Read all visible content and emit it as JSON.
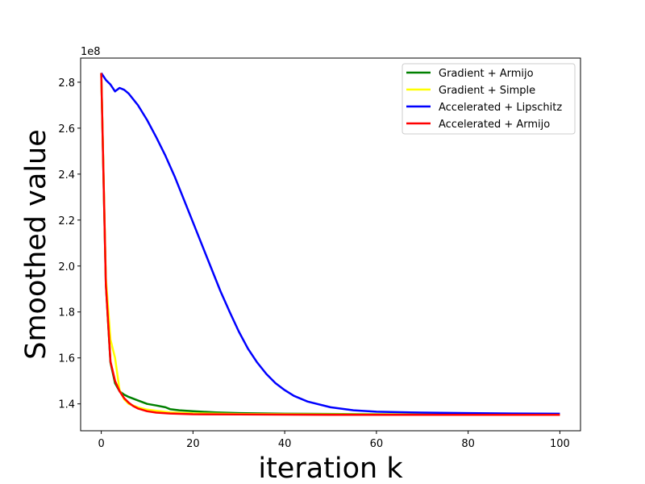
{
  "chart_data": {
    "type": "line",
    "xlabel": "iteration k",
    "ylabel": "Smoothed value",
    "offset_text": "1e8",
    "xlim": [
      -4.5,
      104.5
    ],
    "ylim": [
      128300000.0,
      290500000.0
    ],
    "grid": false,
    "legend_position": "top-right",
    "x_ticks": [
      0,
      20,
      40,
      60,
      80,
      100
    ],
    "x_tick_labels": [
      "0",
      "20",
      "40",
      "60",
      "80",
      "100"
    ],
    "y_ticks": [
      140000000.0,
      160000000.0,
      180000000.0,
      200000000.0,
      220000000.0,
      240000000.0,
      260000000.0,
      280000000.0
    ],
    "y_tick_labels": [
      "1.4",
      "1.6",
      "1.8",
      "2.0",
      "2.2",
      "2.4",
      "2.6",
      "2.8"
    ],
    "series": [
      {
        "name": "Gradient + Armijo",
        "color": "#008000",
        "points": [
          [
            0,
            284000000.0
          ],
          [
            1,
            192000000.0
          ],
          [
            2,
            158000000.0
          ],
          [
            3,
            149000000.0
          ],
          [
            4,
            145500000.0
          ],
          [
            5,
            144000000.0
          ],
          [
            6,
            143000000.0
          ],
          [
            8,
            141500000.0
          ],
          [
            10,
            140000000.0
          ],
          [
            12,
            139300000.0
          ],
          [
            14,
            138500000.0
          ],
          [
            15,
            137700000.0
          ],
          [
            17,
            137200000.0
          ],
          [
            20,
            136800000.0
          ],
          [
            25,
            136300000.0
          ],
          [
            30,
            136000000.0
          ],
          [
            40,
            135700000.0
          ],
          [
            60,
            135500000.0
          ],
          [
            80,
            135400000.0
          ],
          [
            100,
            135300000.0
          ]
        ]
      },
      {
        "name": "Gradient + Simple",
        "color": "#ffff00",
        "points": [
          [
            0,
            284000000.0
          ],
          [
            1,
            195000000.0
          ],
          [
            2,
            168000000.0
          ],
          [
            3,
            160000000.0
          ],
          [
            4,
            146000000.0
          ],
          [
            5,
            142000000.0
          ],
          [
            6,
            140000000.0
          ],
          [
            8,
            138500000.0
          ],
          [
            10,
            137500000.0
          ],
          [
            12,
            137000000.0
          ],
          [
            15,
            136300000.0
          ],
          [
            20,
            135900000.0
          ],
          [
            30,
            135600000.0
          ],
          [
            50,
            135400000.0
          ],
          [
            100,
            135300000.0
          ]
        ]
      },
      {
        "name": "Accelerated + Lipschitz",
        "color": "#0000ff",
        "points": [
          [
            0,
            284000000.0
          ],
          [
            1,
            281000000.0
          ],
          [
            2,
            279000000.0
          ],
          [
            3,
            276000000.0
          ],
          [
            4,
            277500000.0
          ],
          [
            5,
            276700000.0
          ],
          [
            6,
            275000000.0
          ],
          [
            8,
            270000000.0
          ],
          [
            10,
            263500000.0
          ],
          [
            12,
            256000000.0
          ],
          [
            14,
            248000000.0
          ],
          [
            16,
            239000000.0
          ],
          [
            18,
            229000000.0
          ],
          [
            20,
            219000000.0
          ],
          [
            22,
            209000000.0
          ],
          [
            24,
            199000000.0
          ],
          [
            26,
            189000000.0
          ],
          [
            28,
            180000000.0
          ],
          [
            30,
            171500000.0
          ],
          [
            32,
            164000000.0
          ],
          [
            34,
            158000000.0
          ],
          [
            36,
            153000000.0
          ],
          [
            38,
            149000000.0
          ],
          [
            40,
            146000000.0
          ],
          [
            42,
            143500000.0
          ],
          [
            45,
            141000000.0
          ],
          [
            50,
            138500000.0
          ],
          [
            55,
            137200000.0
          ],
          [
            60,
            136600000.0
          ],
          [
            70,
            136200000.0
          ],
          [
            80,
            136000000.0
          ],
          [
            90,
            135800000.0
          ],
          [
            100,
            135700000.0
          ]
        ]
      },
      {
        "name": "Accelerated + Armijo",
        "color": "#ff0000",
        "points": [
          [
            0,
            284000000.0
          ],
          [
            1,
            192000000.0
          ],
          [
            2,
            158500000.0
          ],
          [
            3,
            150000000.0
          ],
          [
            4,
            145500000.0
          ],
          [
            5,
            142500000.0
          ],
          [
            6,
            140500000.0
          ],
          [
            7,
            139000000.0
          ],
          [
            8,
            138000000.0
          ],
          [
            10,
            136800000.0
          ],
          [
            12,
            136200000.0
          ],
          [
            15,
            135800000.0
          ],
          [
            20,
            135500000.0
          ],
          [
            30,
            135400000.0
          ],
          [
            50,
            135200000.0
          ],
          [
            100,
            135200000.0
          ]
        ]
      }
    ]
  }
}
